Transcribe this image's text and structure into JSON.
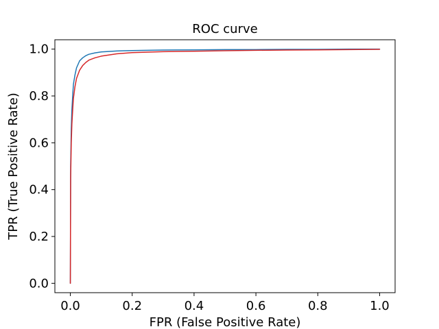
{
  "chart_data": {
    "type": "line",
    "title": "ROC curve",
    "xlabel": "FPR (False Positive Rate)",
    "ylabel": "TPR (True Positive Rate)",
    "xlim": [
      -0.05,
      1.05
    ],
    "ylim": [
      -0.04,
      1.04
    ],
    "x_ticks": [
      0.0,
      0.2,
      0.4,
      0.6,
      0.8,
      1.0
    ],
    "x_tick_labels": [
      "0.0",
      "0.2",
      "0.4",
      "0.6",
      "0.8",
      "1.0"
    ],
    "y_ticks": [
      0.0,
      0.2,
      0.4,
      0.6,
      0.8,
      1.0
    ],
    "y_tick_labels": [
      "0.0",
      "0.2",
      "0.4",
      "0.6",
      "0.8",
      "1.0"
    ],
    "grid": false,
    "legend": "none",
    "series": [
      {
        "color": "#1f77b4",
        "x": [
          0.0,
          0.001,
          0.003,
          0.005,
          0.008,
          0.01,
          0.015,
          0.02,
          0.03,
          0.04,
          0.05,
          0.06,
          0.08,
          0.1,
          0.15,
          0.2,
          0.3,
          0.4,
          0.5,
          0.6,
          0.7,
          0.8,
          0.9,
          1.0
        ],
        "y": [
          0.0,
          0.5,
          0.66,
          0.74,
          0.81,
          0.85,
          0.89,
          0.92,
          0.95,
          0.963,
          0.972,
          0.978,
          0.984,
          0.988,
          0.992,
          0.994,
          0.996,
          0.997,
          0.998,
          0.998,
          0.999,
          0.999,
          1.0,
          1.0
        ]
      },
      {
        "color": "#d62728",
        "x": [
          0.0,
          0.001,
          0.003,
          0.005,
          0.008,
          0.01,
          0.015,
          0.02,
          0.03,
          0.04,
          0.05,
          0.06,
          0.08,
          0.1,
          0.15,
          0.2,
          0.3,
          0.4,
          0.5,
          0.6,
          0.7,
          0.8,
          0.9,
          1.0
        ],
        "y": [
          0.0,
          0.45,
          0.6,
          0.68,
          0.75,
          0.79,
          0.84,
          0.875,
          0.91,
          0.93,
          0.943,
          0.953,
          0.963,
          0.97,
          0.98,
          0.985,
          0.989,
          0.991,
          0.993,
          0.995,
          0.996,
          0.997,
          0.998,
          0.999
        ]
      }
    ]
  }
}
